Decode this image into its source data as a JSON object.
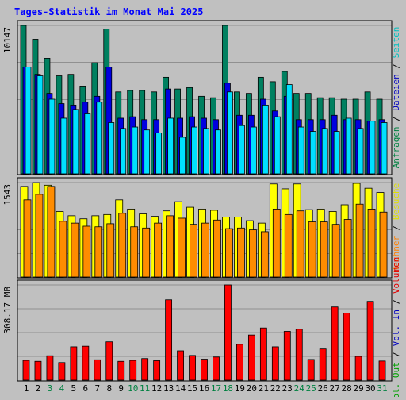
{
  "chart_data": {
    "type": "bar",
    "title": "Tages-Statistik im Monat Mai 2025",
    "categories": [
      "1",
      "2",
      "3",
      "4",
      "5",
      "6",
      "7",
      "8",
      "9",
      "10",
      "11",
      "12",
      "13",
      "14",
      "15",
      "16",
      "17",
      "18",
      "19",
      "20",
      "21",
      "22",
      "23",
      "24",
      "25",
      "26",
      "27",
      "28",
      "29",
      "30",
      "31"
    ],
    "weekend_days": [
      "3",
      "4",
      "10",
      "11",
      "17",
      "18",
      "24",
      "25",
      "31"
    ],
    "panels": [
      {
        "id": "top",
        "ymax_label": "10147",
        "ymax": 10147,
        "right_labels": [
          {
            "text": "Anfragen",
            "color": "#008040"
          },
          {
            "text": " / ",
            "color": "#000000"
          },
          {
            "text": "Dateien",
            "color": "#0000c0"
          },
          {
            "text": " / ",
            "color": "#000000"
          },
          {
            "text": "Seiten",
            "color": "#00c0c0"
          }
        ],
        "series": [
          {
            "name": "Anfragen",
            "color": "#008060",
            "values": [
              10147,
              9200,
              7900,
              6700,
              6800,
              6000,
              7600,
              9900,
              5600,
              5700,
              5700,
              5600,
              6600,
              5800,
              5900,
              5300,
              5200,
              10147,
              5600,
              5500,
              6600,
              6300,
              7000,
              5500,
              5500,
              5200,
              5200,
              5100,
              5100,
              5600,
              5100
            ]
          },
          {
            "name": "Dateien",
            "color": "#0000e0",
            "values": [
              7300,
              6800,
              5500,
              4800,
              4700,
              4900,
              5300,
              7300,
              3800,
              3900,
              3700,
              3700,
              5800,
              3800,
              3900,
              3800,
              3700,
              6200,
              4000,
              4000,
              5100,
              4300,
              5300,
              3700,
              3700,
              3700,
              4000,
              3700,
              3700,
              3600,
              3700
            ]
          },
          {
            "name": "Seiten",
            "color": "#00e0ff",
            "values": [
              7300,
              6700,
              5100,
              3800,
              4400,
              4100,
              4900,
              3500,
              3100,
              3200,
              3000,
              2800,
              3800,
              2500,
              3200,
              3100,
              3000,
              5600,
              3300,
              3200,
              4700,
              3900,
              6100,
              3200,
              2900,
              3100,
              2900,
              3800,
              3100,
              3600,
              3500
            ]
          }
        ]
      },
      {
        "id": "middle",
        "ymax_label": "1543",
        "ymax": 1543,
        "right_labels": [
          {
            "text": "Rechner",
            "color": "#ff8000"
          },
          {
            "text": " / ",
            "color": "#000000"
          },
          {
            "text": "Besuche",
            "color": "#e0e000"
          }
        ],
        "series": [
          {
            "name": "Besuche",
            "color": "#ffff00",
            "values": [
              1480,
              1543,
              1500,
              1070,
              1000,
              950,
              1000,
              1020,
              1260,
              1110,
              1030,
              990,
              1080,
              1230,
              1140,
              1110,
              1090,
              980,
              980,
              920,
              880,
              1520,
              1440,
              1520,
              1100,
              1110,
              1070,
              1180,
              1530,
              1450,
              1380
            ]
          },
          {
            "name": "Rechner",
            "color": "#ff8c00",
            "values": [
              1260,
              1350,
              1480,
              910,
              880,
              830,
              820,
              870,
              1040,
              820,
              800,
              880,
              1000,
              960,
              860,
              880,
              930,
              790,
              800,
              770,
              740,
              1110,
              1020,
              1080,
              900,
              900,
              860,
              940,
              1190,
              1110,
              1060
            ]
          }
        ]
      },
      {
        "id": "bottom",
        "ymax_label": "308.17 MB",
        "ymax": 308.17,
        "right_labels": [
          {
            "text": "Vol. Out",
            "color": "#00a000"
          },
          {
            "text": " / ",
            "color": "#000000"
          },
          {
            "text": "Vol. In",
            "color": "#0000c0"
          },
          {
            "text": " / ",
            "color": "#000000"
          },
          {
            "text": "Volumen",
            "color": "#e00000"
          }
        ],
        "series": [
          {
            "name": "Volumen",
            "color": "#ff0000",
            "values": [
              64,
              61,
              79,
              57,
              108,
              110,
              66,
              124,
              61,
              64,
              70,
              63,
              260,
              95,
              80,
              68,
              75,
              308.17,
              116,
              146,
              169,
              108,
              158,
              165,
              67,
              101,
              237,
              217,
              77,
              255,
              62
            ]
          }
        ]
      }
    ]
  }
}
